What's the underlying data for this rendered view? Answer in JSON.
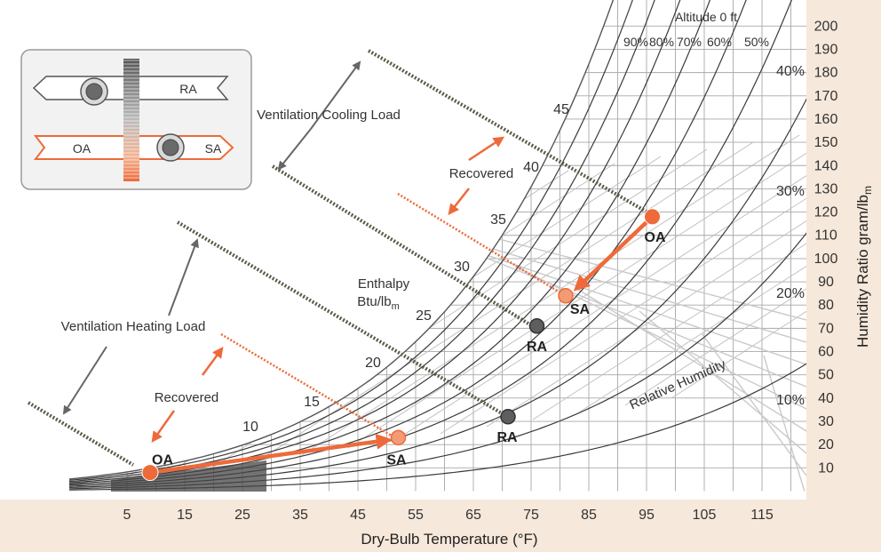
{
  "legend_diagram": {
    "ra_label": "RA",
    "oa_label": "OA",
    "sa_label": "SA"
  },
  "labels": {
    "altitude": "Altitude 0 ft",
    "x_axis": "Dry-Bulb Temperature (°F)",
    "y_axis": "Humidity Ratio gram/lb",
    "y_axis_sub": "m",
    "enthalpy_line1": "Enthalpy",
    "enthalpy_line2": "Btu/lb",
    "enthalpy_sub": "m",
    "relative_humidity": "Relative Humidity",
    "ventilation_cooling_load": "Ventilation Cooling Load",
    "ventilation_heating_load": "Ventilation Heating Load",
    "recovered_cooling": "Recovered",
    "recovered_heating": "Recovered"
  },
  "points": {
    "cooling_oa": "OA",
    "cooling_sa": "SA",
    "cooling_ra": "RA",
    "heating_oa": "OA",
    "heating_sa": "SA",
    "heating_ra": "RA"
  },
  "chart_data": {
    "type": "scatter",
    "title": "",
    "xlabel": "Dry-Bulb Temperature (°F)",
    "ylabel": "Humidity Ratio gram/lbm",
    "xlim": [
      2,
      122
    ],
    "ylim": [
      0,
      200
    ],
    "x_ticks": [
      5,
      15,
      25,
      35,
      45,
      55,
      65,
      75,
      85,
      95,
      105,
      115
    ],
    "y_ticks": [
      10,
      20,
      30,
      40,
      50,
      60,
      70,
      80,
      90,
      100,
      110,
      120,
      130,
      140,
      150,
      160,
      170,
      180,
      190,
      200
    ],
    "enthalpy_labels": [
      "10",
      "15",
      "20",
      "25",
      "30",
      "35",
      "40",
      "45"
    ],
    "rh_top_labels": [
      "90%",
      "80%",
      "70%",
      "60%",
      "50%"
    ],
    "rh_side_labels": [
      "40%",
      "30%",
      "20%",
      "10%"
    ],
    "cooling": {
      "OA": {
        "db": 96,
        "w": 118
      },
      "SA": {
        "db": 81,
        "w": 84
      },
      "RA": {
        "db": 76,
        "w": 71
      }
    },
    "heating": {
      "OA": {
        "db": 9,
        "w": 8
      },
      "SA": {
        "db": 52,
        "w": 23
      },
      "RA": {
        "db": 71,
        "w": 32
      }
    },
    "colors": {
      "accent": "#ee6a3a",
      "point_light": "#f39b74",
      "return_air": "#5e5e5e",
      "grid": "#a8a8a8",
      "background": "#f6e8da",
      "plot": "#ffffff",
      "curve": "#3a3a3a"
    }
  }
}
